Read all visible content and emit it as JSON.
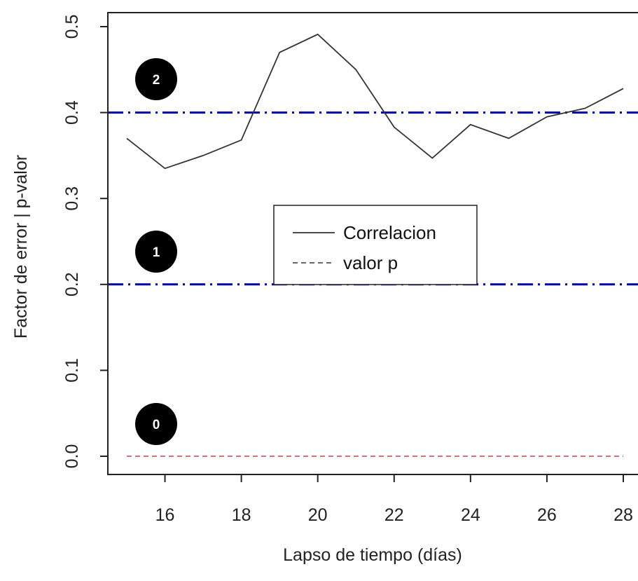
{
  "chart_data": {
    "type": "line",
    "xlabel": "Lapso de tiempo (días)",
    "ylabel": "Factor de error | p-valor",
    "xlim": [
      15,
      28
    ],
    "ylim": [
      0,
      0.5
    ],
    "x_ticks": [
      16,
      18,
      20,
      22,
      24,
      26,
      28
    ],
    "y_ticks": [
      "0.0",
      "0.1",
      "0.2",
      "0.3",
      "0.4",
      "0.5"
    ],
    "series": [
      {
        "name": "Correlacion",
        "style": "solid",
        "color": "#333333",
        "x": [
          15,
          16,
          17,
          18,
          19,
          20,
          21,
          22,
          23,
          24,
          25,
          26,
          27,
          28
        ],
        "y": [
          0.37,
          0.335,
          0.35,
          0.368,
          0.47,
          0.491,
          0.45,
          0.383,
          0.347,
          0.386,
          0.37,
          0.395,
          0.405,
          0.428
        ]
      },
      {
        "name": "valor p",
        "style": "dashed",
        "color": "#cc4444",
        "x": [
          15,
          28
        ],
        "y": [
          0.0,
          0.0
        ]
      }
    ],
    "reference_lines": [
      {
        "y": 0.2,
        "color": "#0000aa",
        "style": "dash-dot"
      },
      {
        "y": 0.4,
        "color": "#0000aa",
        "style": "dash-dot"
      }
    ],
    "legend": {
      "placement": "center",
      "entries": [
        "Correlacion",
        "valor p"
      ]
    },
    "annotations": [
      "0",
      "1",
      "2"
    ],
    "grid": false
  }
}
